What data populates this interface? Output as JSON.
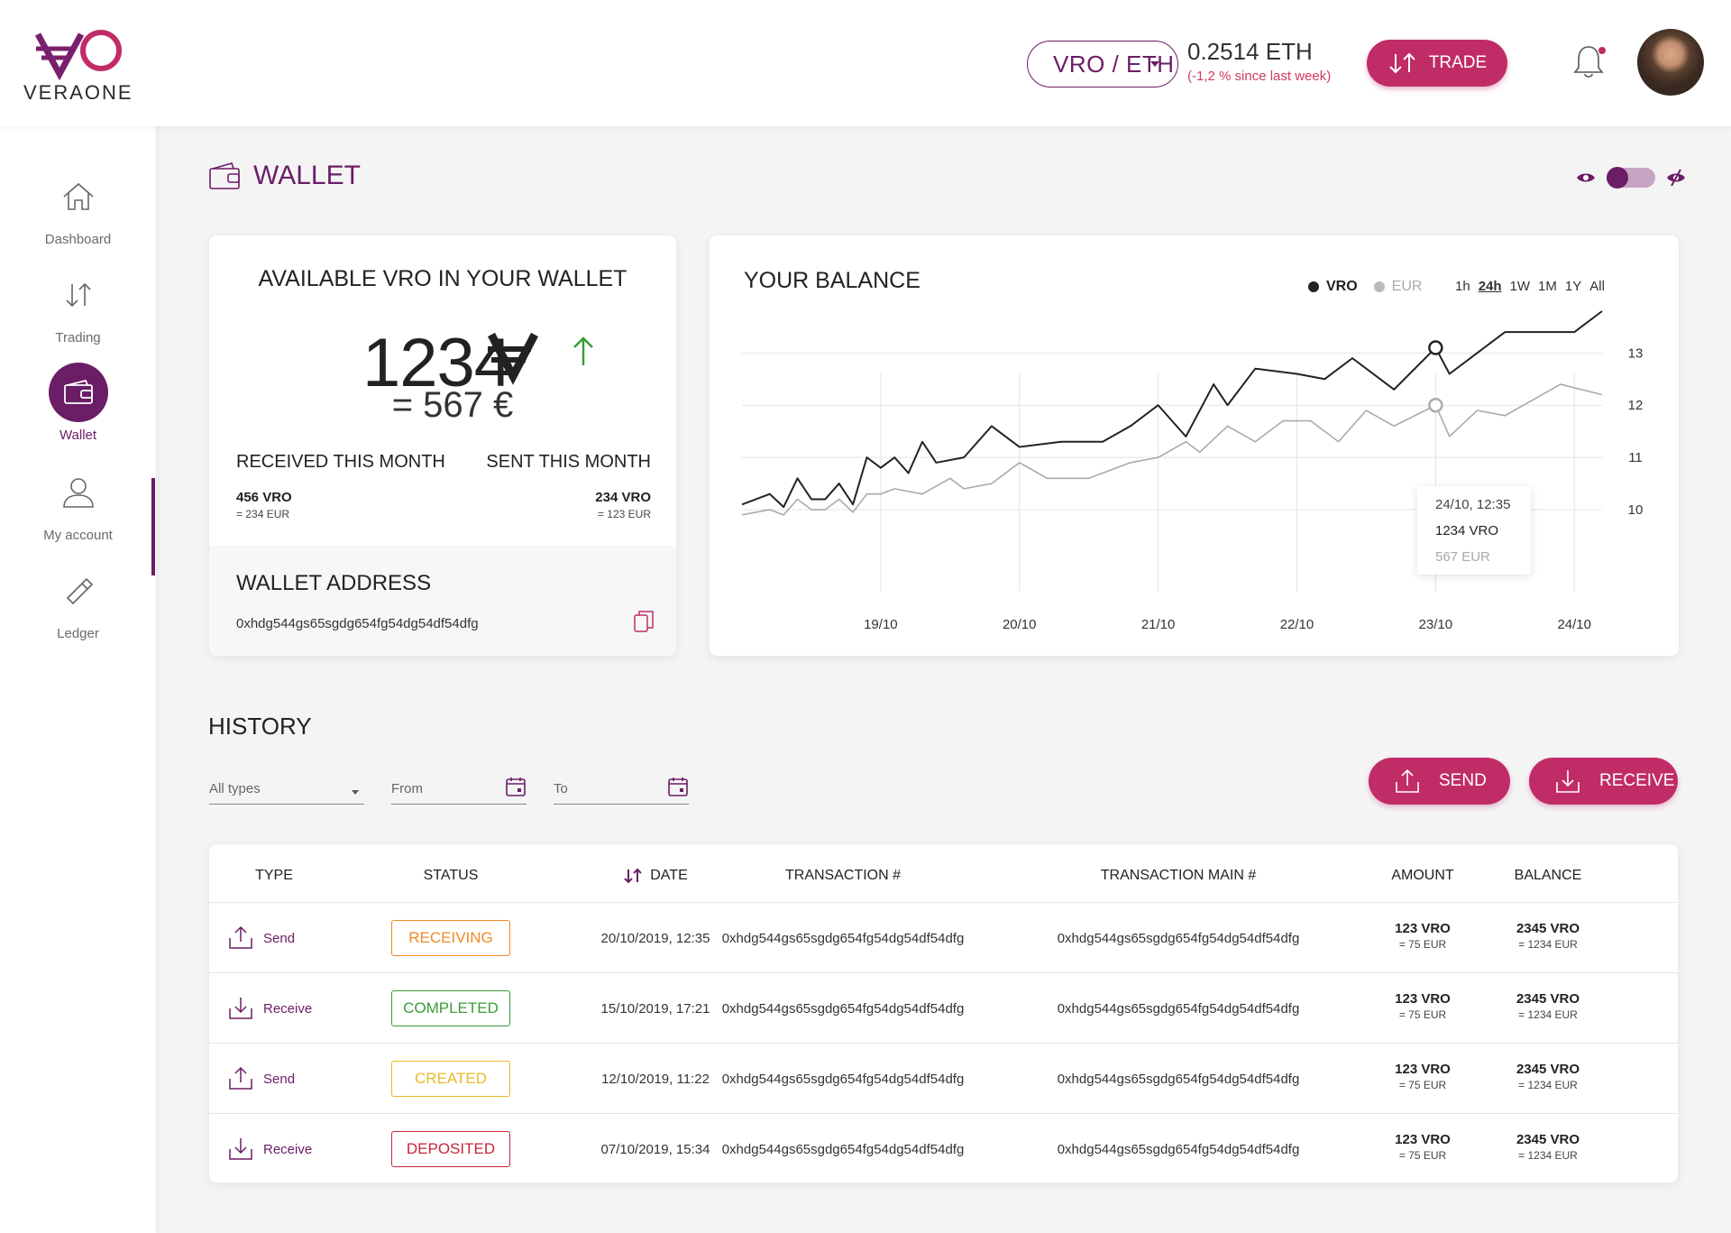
{
  "brand": {
    "name": "VERAONE"
  },
  "header": {
    "pair": "VRO / ETH",
    "price": "0.2514 ETH",
    "price_change": "(-1,2 % since last week)",
    "trade_label": "TRADE"
  },
  "sidebar": {
    "items": [
      {
        "label": "Dashboard",
        "icon": "home-icon"
      },
      {
        "label": "Trading",
        "icon": "trade-arrows-icon"
      },
      {
        "label": "Wallet",
        "icon": "wallet-icon",
        "active": true
      },
      {
        "label": "My account",
        "icon": "user-icon"
      },
      {
        "label": "Ledger",
        "icon": "usb-key-icon"
      }
    ]
  },
  "page": {
    "title": "WALLET"
  },
  "wallet_card": {
    "title": "AVAILABLE VRO IN YOUR WALLET",
    "amount": "1234",
    "eur_equivalent": "= 567 €",
    "received_title": "RECEIVED THIS MONTH",
    "received_vro": "456 VRO",
    "received_eur": "= 234 EUR",
    "sent_title": "SENT THIS MONTH",
    "sent_vro": "234 VRO",
    "sent_eur": "= 123 EUR",
    "address_title": "WALLET ADDRESS",
    "address": "0xhdg544gs65sgdg654fg54dg54df54dfg"
  },
  "balance_card": {
    "title": "YOUR BALANCE",
    "legend": [
      "VRO",
      "EUR"
    ],
    "ranges": [
      "1h",
      "24h",
      "1W",
      "1M",
      "1Y",
      "All"
    ],
    "selected_range": "24h",
    "tooltip": {
      "datetime": "24/10, 12:35",
      "vro": "1234 VRO",
      "eur": "567 EUR"
    }
  },
  "chart_data": {
    "type": "line",
    "x_tick_labels": [
      "19/10",
      "20/10",
      "21/10",
      "22/10",
      "23/10",
      "24/10"
    ],
    "y_tick_labels": [
      "10",
      "11",
      "12",
      "13"
    ],
    "ylim": [
      9.5,
      13.8
    ],
    "grid": true,
    "legend_placement": "top-right",
    "series": [
      {
        "name": "VRO",
        "color": "#222222",
        "x": [
          0,
          0.2,
          0.3,
          0.4,
          0.5,
          0.6,
          0.7,
          0.8,
          0.9,
          1.0,
          1.1,
          1.2,
          1.3,
          1.4,
          1.6,
          1.8,
          2.0,
          2.3,
          2.6,
          2.8,
          3.0,
          3.2,
          3.4,
          3.5,
          3.7,
          4.0,
          4.2,
          4.4,
          4.7,
          5.0,
          5.1,
          5.3,
          5.5,
          6.0,
          6.2
        ],
        "values": [
          10.1,
          10.3,
          10.05,
          10.6,
          10.2,
          10.2,
          10.5,
          10.1,
          11.0,
          10.8,
          11.0,
          10.7,
          11.3,
          10.9,
          11.0,
          11.6,
          11.2,
          11.3,
          11.3,
          11.6,
          12.0,
          11.4,
          12.4,
          12.0,
          12.7,
          12.6,
          12.5,
          12.9,
          12.3,
          13.1,
          12.6,
          13.0,
          13.4,
          13.4,
          13.8
        ]
      },
      {
        "name": "EUR",
        "color": "#aaaaaa",
        "x": [
          0,
          0.2,
          0.3,
          0.4,
          0.5,
          0.6,
          0.7,
          0.8,
          0.9,
          1.0,
          1.1,
          1.3,
          1.5,
          1.6,
          1.8,
          2.0,
          2.2,
          2.5,
          2.8,
          3.0,
          3.2,
          3.3,
          3.5,
          3.7,
          3.9,
          4.1,
          4.3,
          4.5,
          4.7,
          5.0,
          5.1,
          5.3,
          5.5,
          5.9,
          6.2
        ],
        "values": [
          9.9,
          10.0,
          9.9,
          10.2,
          10.0,
          10.0,
          10.2,
          9.95,
          10.3,
          10.3,
          10.4,
          10.3,
          10.6,
          10.4,
          10.5,
          10.9,
          10.6,
          10.6,
          10.9,
          11.0,
          11.3,
          11.1,
          11.6,
          11.3,
          11.7,
          11.7,
          11.3,
          11.9,
          11.6,
          12.0,
          11.4,
          11.9,
          11.8,
          12.4,
          12.2
        ]
      }
    ],
    "highlight": {
      "x": 5.0,
      "vro": 13.1,
      "eur": 12.0
    }
  },
  "history": {
    "title": "HISTORY",
    "filters": {
      "type": "All types",
      "from": "From",
      "to": "To"
    },
    "send_label": "SEND",
    "receive_label": "RECEIVE",
    "columns": [
      "TYPE",
      "STATUS",
      "DATE",
      "TRANSACTION #",
      "TRANSACTION MAIN #",
      "AMOUNT",
      "BALANCE"
    ],
    "rows": [
      {
        "type": "Send",
        "status": "RECEIVING",
        "status_color": "#f08a24",
        "date": "20/10/2019, 12:35",
        "tx": "0xhdg544gs65sgdg654fg54dg54df54dfg",
        "tx_main": "0xhdg544gs65sgdg654fg54dg54df54dfg",
        "amount": "123 VRO",
        "amount_eur": "= 75 EUR",
        "balance": "2345 VRO",
        "balance_eur": "= 1234 EUR"
      },
      {
        "type": "Receive",
        "status": "COMPLETED",
        "status_color": "#3a9c3a",
        "date": "15/10/2019, 17:21",
        "tx": "0xhdg544gs65sgdg654fg54dg54df54dfg",
        "tx_main": "0xhdg544gs65sgdg654fg54dg54df54dfg",
        "amount": "123 VRO",
        "amount_eur": "= 75 EUR",
        "balance": "2345 VRO",
        "balance_eur": "= 1234 EUR"
      },
      {
        "type": "Send",
        "status": "CREATED",
        "status_color": "#e8b824",
        "date": "12/10/2019, 11:22",
        "tx": "0xhdg544gs65sgdg654fg54dg54df54dfg",
        "tx_main": "0xhdg544gs65sgdg654fg54dg54df54dfg",
        "amount": "123 VRO",
        "amount_eur": "= 75 EUR",
        "balance": "2345 VRO",
        "balance_eur": "= 1234 EUR"
      },
      {
        "type": "Receive",
        "status": "DEPOSITED",
        "status_color": "#c8253a",
        "date": "07/10/2019, 15:34",
        "tx": "0xhdg544gs65sgdg654fg54dg54df54dfg",
        "tx_main": "0xhdg544gs65sgdg654fg54dg54df54dfg",
        "amount": "123 VRO",
        "amount_eur": "= 75 EUR",
        "balance": "2345 VRO",
        "balance_eur": "= 1234 EUR"
      }
    ]
  },
  "colors": {
    "brand": "#6b1d66",
    "accent": "#c02c66"
  }
}
